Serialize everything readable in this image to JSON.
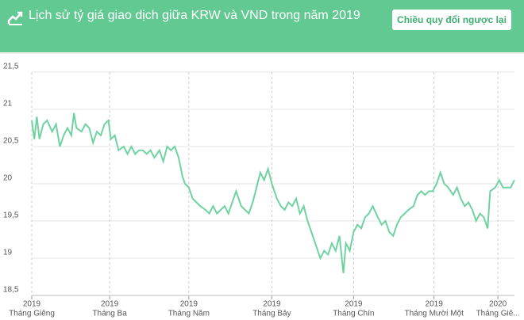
{
  "header": {
    "title": "Lịch sử tỷ giá giao dịch giữa KRW và VND trong năm 2019",
    "button": "Chiều quy đổi ngược lại"
  },
  "chart_data": {
    "type": "line",
    "color": "#6fd3a0",
    "grid": true,
    "x": [
      0,
      2,
      4,
      6,
      9,
      12,
      16,
      19,
      22,
      25,
      28,
      31,
      33,
      35,
      39,
      42,
      45,
      48,
      51,
      54,
      57,
      60,
      62,
      65,
      68,
      72,
      75,
      78,
      81,
      84,
      87,
      90,
      93,
      96,
      100,
      103,
      106,
      109,
      112,
      115,
      118,
      120,
      123,
      126,
      129,
      132,
      136,
      139,
      142,
      145,
      148,
      151,
      154,
      157,
      160,
      164,
      167,
      170,
      173,
      176,
      179,
      182,
      185,
      188,
      192,
      195,
      198,
      201,
      204,
      207,
      210,
      213,
      216,
      220,
      223,
      226,
      229,
      232,
      235,
      238,
      241,
      244,
      246,
      249,
      252,
      255,
      258,
      261,
      264,
      267,
      271,
      274,
      277,
      280,
      283,
      286,
      289,
      292,
      295,
      299,
      302,
      305,
      308,
      311,
      314,
      317,
      320,
      323,
      326,
      330,
      333,
      336,
      339,
      342,
      345,
      348,
      351,
      354,
      357,
      359,
      363,
      366,
      369,
      372,
      375,
      378
    ],
    "values": [
      20.85,
      20.6,
      20.9,
      20.6,
      20.8,
      20.85,
      20.7,
      20.8,
      20.5,
      20.65,
      20.75,
      20.65,
      20.95,
      20.75,
      20.7,
      20.8,
      20.75,
      20.55,
      20.7,
      20.65,
      20.8,
      20.85,
      20.6,
      20.65,
      20.45,
      20.5,
      20.4,
      20.5,
      20.4,
      20.45,
      20.45,
      20.4,
      20.45,
      20.35,
      20.45,
      20.3,
      20.5,
      20.45,
      20.5,
      20.35,
      20.1,
      20.0,
      19.95,
      19.8,
      19.75,
      19.7,
      19.65,
      19.6,
      19.7,
      19.6,
      19.65,
      19.7,
      19.6,
      19.75,
      19.9,
      19.7,
      19.65,
      19.6,
      19.75,
      19.95,
      20.15,
      20.05,
      20.2,
      20.0,
      19.8,
      19.7,
      19.65,
      19.75,
      19.7,
      19.8,
      19.6,
      19.7,
      19.5,
      19.3,
      19.15,
      19.0,
      19.1,
      19.05,
      19.2,
      19.1,
      19.3,
      18.8,
      19.2,
      19.1,
      19.35,
      19.45,
      19.4,
      19.55,
      19.6,
      19.7,
      19.55,
      19.45,
      19.5,
      19.35,
      19.3,
      19.45,
      19.55,
      19.6,
      19.65,
      19.7,
      19.85,
      19.9,
      19.85,
      19.9,
      19.9,
      20.0,
      20.15,
      20.0,
      19.95,
      19.85,
      19.95,
      19.8,
      19.7,
      19.75,
      19.65,
      19.5,
      19.6,
      19.55,
      19.4,
      19.9,
      19.95,
      20.05,
      19.95,
      19.95,
      19.95,
      20.05
    ],
    "xlim": [
      0,
      378
    ],
    "xticks": [
      {
        "value": 0,
        "year": "2019",
        "label": "Tháng Giêng"
      },
      {
        "value": 61,
        "year": "2019",
        "label": "Tháng Ba"
      },
      {
        "value": 123,
        "year": "2019",
        "label": "Tháng Năm"
      },
      {
        "value": 188,
        "year": "2019",
        "label": "Tháng Bảy"
      },
      {
        "value": 252,
        "year": "2019",
        "label": "Tháng Chín"
      },
      {
        "value": 315,
        "year": "2019",
        "label": "Tháng Mười Một"
      },
      {
        "value": 365,
        "year": "2020",
        "label": "Tháng Giê..."
      }
    ],
    "ylim": [
      18.5,
      21.5
    ],
    "yticks": [
      {
        "value": 18.5,
        "label": "18,5"
      },
      19,
      {
        "value": 19.5,
        "label": "19,5"
      },
      20,
      {
        "value": 20.5,
        "label": "20,5"
      },
      21,
      {
        "value": 21.5,
        "label": "21,5"
      }
    ]
  }
}
